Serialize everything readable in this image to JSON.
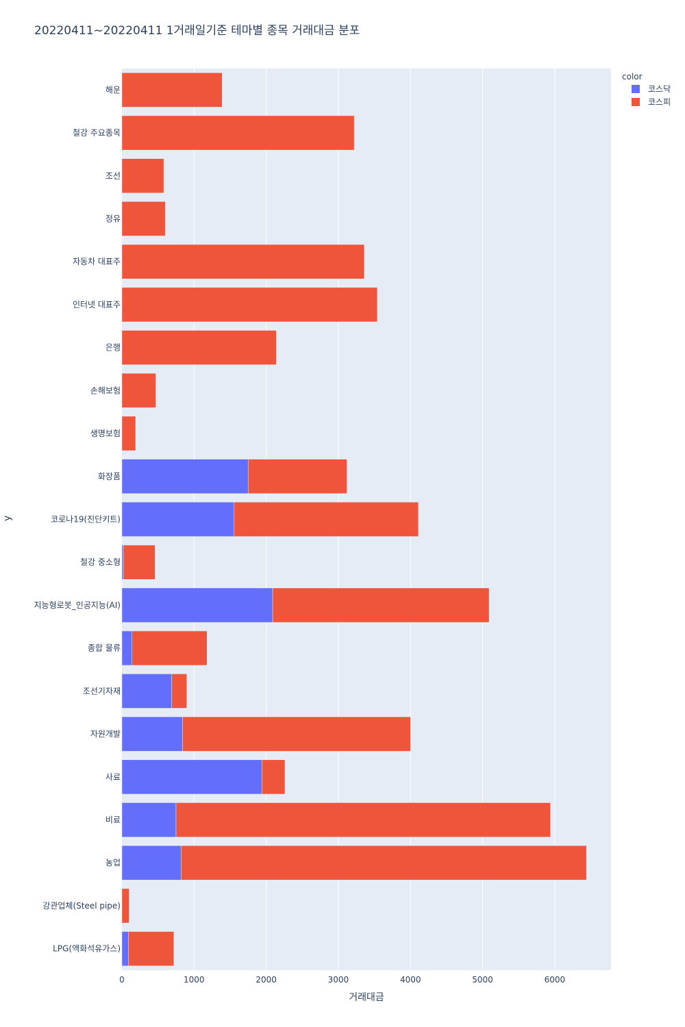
{
  "chart_data": {
    "type": "bar",
    "orientation": "horizontal",
    "barmode": "stack",
    "title": "20220411~20220411 1거래일기준 테마별 종목 거래대금 분포",
    "xlabel": "거래대금",
    "ylabel": "y",
    "xlim": [
      0,
      6780
    ],
    "xticks": [
      0,
      1000,
      2000,
      3000,
      4000,
      5000,
      6000
    ],
    "grid": true,
    "legend": {
      "title": "color",
      "position": "top-right"
    },
    "categories": [
      "해운",
      "철강 주요종목",
      "조선",
      "정유",
      "자동차 대표주",
      "인터넷 대표주",
      "은행",
      "손해보험",
      "생명보험",
      "화장품",
      "코로나19(진단키트)",
      "철강 중소형",
      "지능형로봇_인공지능(AI)",
      "종합 물류",
      "조선기자재",
      "자원개발",
      "사료",
      "비료",
      "농업",
      "강관업체(Steel pipe)",
      "LPG(액화석유가스)"
    ],
    "series": [
      {
        "name": "코스닥",
        "color": "#636efa",
        "values": [
          0,
          0,
          0,
          0,
          0,
          0,
          0,
          0,
          0,
          1750,
          1550,
          20,
          2090,
          140,
          690,
          840,
          1940,
          750,
          820,
          0,
          90
        ]
      },
      {
        "name": "코스피",
        "color": "#ef553b",
        "values": [
          1390,
          3220,
          580,
          600,
          3360,
          3540,
          2140,
          470,
          190,
          1370,
          2560,
          440,
          3000,
          1040,
          210,
          3160,
          320,
          5190,
          5620,
          100,
          630
        ]
      }
    ]
  }
}
